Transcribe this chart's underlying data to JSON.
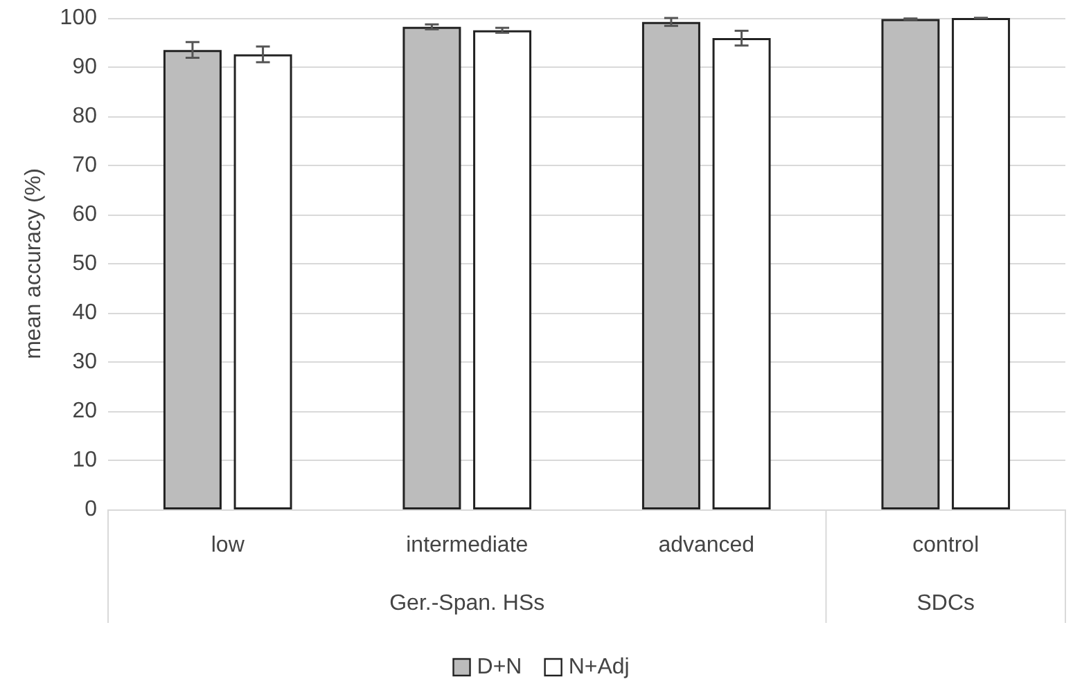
{
  "chart_data": {
    "type": "bar",
    "ylabel": "mean accuracy (%)",
    "categories": [
      "low",
      "intermediate",
      "advanced",
      "control"
    ],
    "series": [
      {
        "name": "D+N",
        "color": "#bcbcbc",
        "values": [
          93.5,
          98.2,
          99.2,
          99.8
        ],
        "errors": [
          1.6,
          0.5,
          0.8,
          0.1
        ]
      },
      {
        "name": "N+Adj",
        "color": "#ffffff",
        "values": [
          92.6,
          97.5,
          95.9,
          100
        ],
        "errors": [
          1.6,
          0.5,
          1.5,
          0
        ]
      }
    ],
    "ylim": [
      0,
      100
    ],
    "yticks": [
      0,
      10,
      20,
      30,
      40,
      50,
      60,
      70,
      80,
      90,
      100
    ],
    "grid": true,
    "legend": "bottom",
    "annotations": [
      "Ger.-Span. HSs",
      "SDCs"
    ]
  }
}
